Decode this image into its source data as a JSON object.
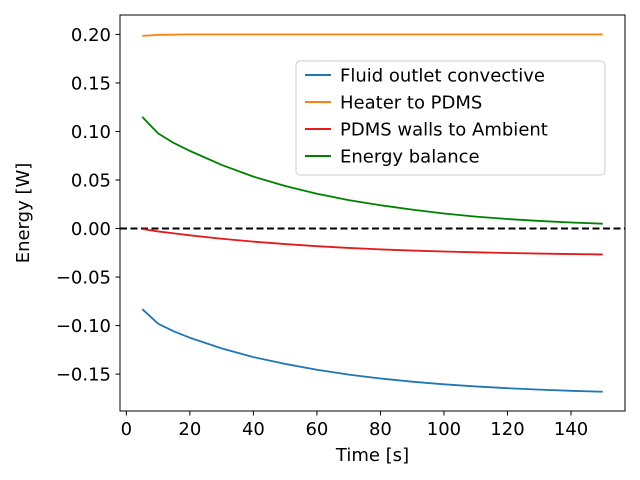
{
  "chart_data": {
    "type": "line",
    "title": "",
    "xlabel": "Time [s]",
    "ylabel": "Energy [W]",
    "xlim": [
      -2,
      157
    ],
    "ylim": [
      -0.188,
      0.22
    ],
    "xticks": [
      0,
      20,
      40,
      60,
      80,
      100,
      120,
      140
    ],
    "yticks": [
      -0.15,
      -0.1,
      -0.05,
      0.0,
      0.05,
      0.1,
      0.15,
      0.2
    ],
    "xtick_labels": [
      "0",
      "20",
      "40",
      "60",
      "80",
      "100",
      "120",
      "140"
    ],
    "ytick_labels": [
      "−0.15",
      "−0.10",
      "−0.05",
      "0.00",
      "0.05",
      "0.10",
      "0.15",
      "0.20"
    ],
    "grid": false,
    "legend_position": "upper-right",
    "reference_line": {
      "y": 0,
      "style": "dashed",
      "color": "#000000"
    },
    "series": [
      {
        "name": "Fluid outlet convective",
        "color": "#1f77b4",
        "x": [
          5,
          10,
          15,
          20,
          30,
          40,
          50,
          60,
          70,
          80,
          90,
          100,
          110,
          120,
          130,
          140,
          150
        ],
        "y": [
          -0.083,
          -0.098,
          -0.106,
          -0.1125,
          -0.1235,
          -0.1325,
          -0.1395,
          -0.1455,
          -0.1505,
          -0.1545,
          -0.1578,
          -0.1605,
          -0.1627,
          -0.1645,
          -0.166,
          -0.1672,
          -0.1682
        ]
      },
      {
        "name": "Heater to PDMS",
        "color": "#ff7f0e",
        "x": [
          5,
          10,
          15,
          20,
          40,
          60,
          80,
          100,
          120,
          150
        ],
        "y": [
          0.1985,
          0.1995,
          0.1998,
          0.2,
          0.2,
          0.2,
          0.2,
          0.2,
          0.2,
          0.2
        ]
      },
      {
        "name": "PDMS walls to Ambient",
        "color": "#e41a1c",
        "x": [
          5,
          10,
          15,
          20,
          30,
          40,
          50,
          60,
          70,
          80,
          90,
          100,
          110,
          120,
          130,
          140,
          150
        ],
        "y": [
          -0.0005,
          -0.003,
          -0.005,
          -0.007,
          -0.0105,
          -0.0135,
          -0.016,
          -0.0182,
          -0.02,
          -0.0215,
          -0.0227,
          -0.0237,
          -0.0245,
          -0.0252,
          -0.0258,
          -0.0263,
          -0.0267
        ]
      },
      {
        "name": "Energy balance",
        "color": "#008000",
        "x": [
          5,
          10,
          15,
          20,
          30,
          40,
          50,
          60,
          70,
          80,
          90,
          100,
          110,
          120,
          130,
          140,
          150
        ],
        "y": [
          0.115,
          0.098,
          0.088,
          0.08,
          0.0655,
          0.0535,
          0.0438,
          0.0358,
          0.0293,
          0.024,
          0.0195,
          0.0155,
          0.0123,
          0.0098,
          0.0078,
          0.0062,
          0.005
        ]
      }
    ]
  }
}
